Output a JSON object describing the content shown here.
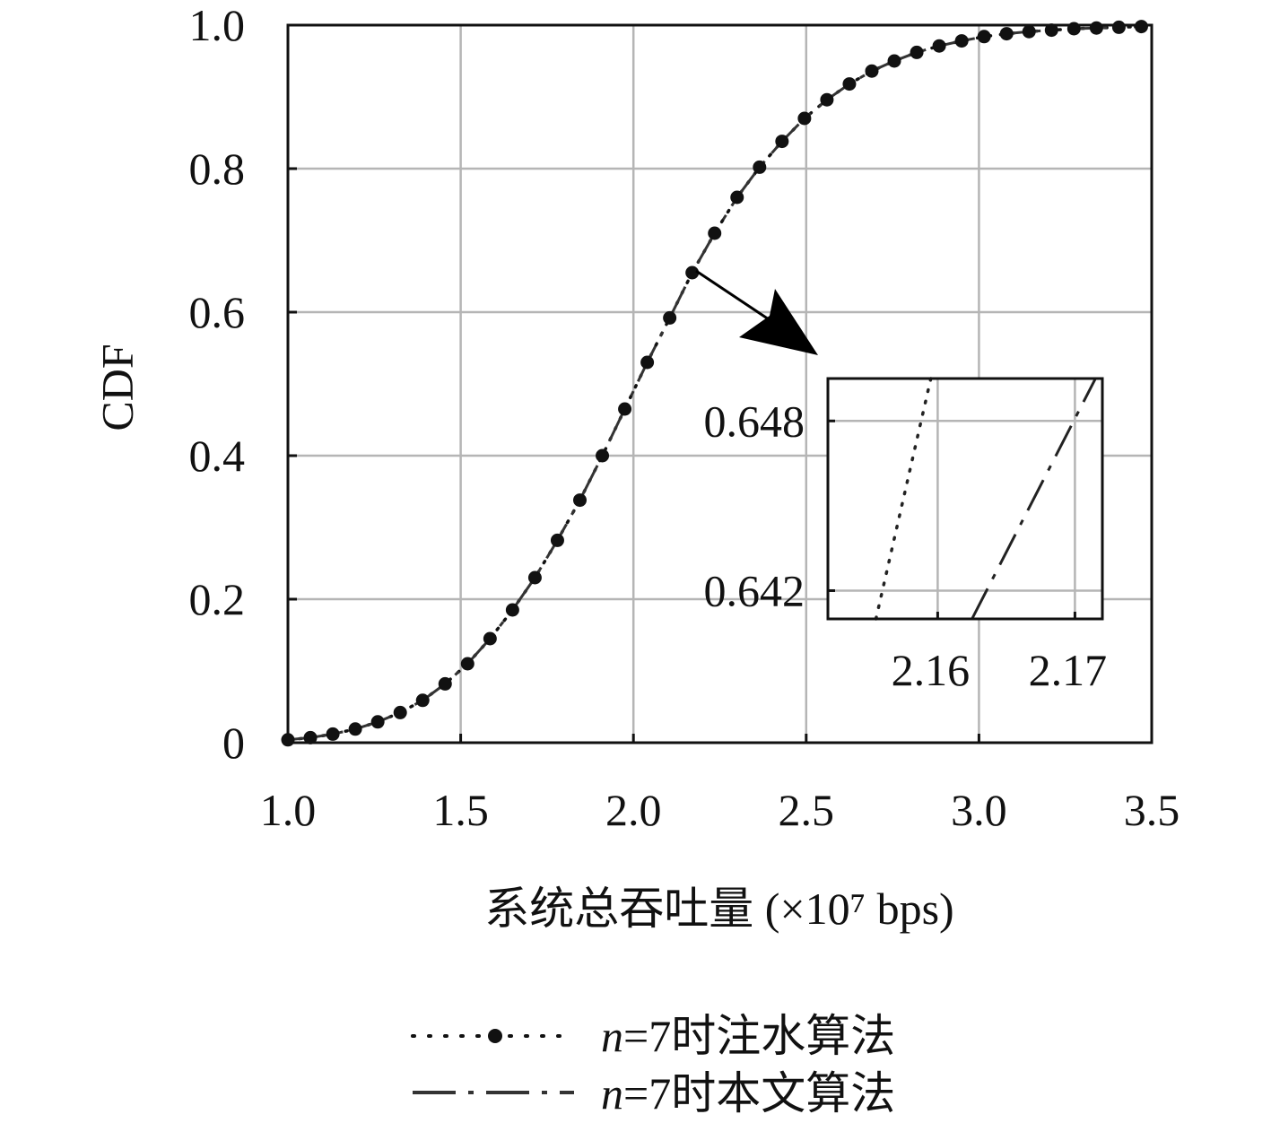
{
  "chart_data": {
    "type": "line",
    "title": "",
    "xlabel": "系统总吞吐量 (×10⁷ bps)",
    "ylabel": "CDF",
    "xlim": [
      1.0,
      3.5
    ],
    "ylim": [
      0,
      1.0
    ],
    "xticks": [
      "1.0",
      "1.5",
      "2.0",
      "2.5",
      "3.0",
      "3.5"
    ],
    "yticks": [
      "0",
      "0.2",
      "0.4",
      "0.6",
      "0.8",
      "1.0"
    ],
    "grid": true,
    "legend_position": "bottom",
    "series": [
      {
        "name": "n=7时注水算法",
        "style": "dotted-with-markers",
        "color": "#111111",
        "x": [
          1.0,
          1.065,
          1.13,
          1.195,
          1.26,
          1.325,
          1.39,
          1.455,
          1.52,
          1.585,
          1.65,
          1.715,
          1.78,
          1.845,
          1.91,
          1.975,
          2.04,
          2.105,
          2.17,
          2.235,
          2.3,
          2.365,
          2.43,
          2.495,
          2.56,
          2.625,
          2.69,
          2.755,
          2.82,
          2.885,
          2.95,
          3.015,
          3.08,
          3.145,
          3.21,
          3.275,
          3.34,
          3.405,
          3.47
        ],
        "y": [
          0.004,
          0.007,
          0.012,
          0.019,
          0.029,
          0.042,
          0.059,
          0.082,
          0.11,
          0.145,
          0.185,
          0.23,
          0.282,
          0.338,
          0.4,
          0.465,
          0.53,
          0.592,
          0.655,
          0.71,
          0.76,
          0.802,
          0.838,
          0.87,
          0.896,
          0.918,
          0.936,
          0.95,
          0.962,
          0.971,
          0.978,
          0.984,
          0.988,
          0.991,
          0.993,
          0.995,
          0.996,
          0.997,
          0.998
        ]
      },
      {
        "name": "n=7时本文算法",
        "style": "dash-dot",
        "color": "#333333",
        "x": [
          1.0,
          1.065,
          1.13,
          1.195,
          1.26,
          1.325,
          1.39,
          1.455,
          1.52,
          1.585,
          1.65,
          1.715,
          1.78,
          1.845,
          1.91,
          1.975,
          2.04,
          2.105,
          2.17,
          2.235,
          2.3,
          2.365,
          2.43,
          2.495,
          2.56,
          2.625,
          2.69,
          2.755,
          2.82,
          2.885,
          2.95,
          3.015,
          3.08,
          3.145,
          3.21,
          3.275,
          3.34,
          3.405,
          3.47
        ],
        "y": [
          0.004,
          0.007,
          0.012,
          0.019,
          0.029,
          0.042,
          0.059,
          0.082,
          0.11,
          0.145,
          0.185,
          0.23,
          0.282,
          0.338,
          0.4,
          0.465,
          0.53,
          0.592,
          0.655,
          0.71,
          0.76,
          0.802,
          0.838,
          0.87,
          0.896,
          0.918,
          0.936,
          0.95,
          0.962,
          0.971,
          0.978,
          0.984,
          0.988,
          0.991,
          0.993,
          0.995,
          0.996,
          0.997,
          0.998
        ]
      }
    ],
    "inset": {
      "xlim": [
        2.152,
        2.172
      ],
      "ylim": [
        0.641,
        0.6495
      ],
      "xticks": [
        "2.16",
        "2.17"
      ],
      "yticks": [
        "0.642",
        "0.648"
      ],
      "grid": true,
      "series": [
        {
          "name": "n=7时注水算法",
          "style": "dotted",
          "x": [
            2.1555,
            2.1595
          ],
          "y": [
            0.641,
            0.6495
          ]
        },
        {
          "name": "n=7时本文算法",
          "style": "dashed",
          "x": [
            2.1625,
            2.1715
          ],
          "y": [
            0.641,
            0.6495
          ]
        }
      ]
    }
  },
  "legend": {
    "item1_n": "n",
    "item1_rest": "=7时注水算法",
    "item2_n": "n",
    "item2_rest": "=7时本文算法"
  }
}
